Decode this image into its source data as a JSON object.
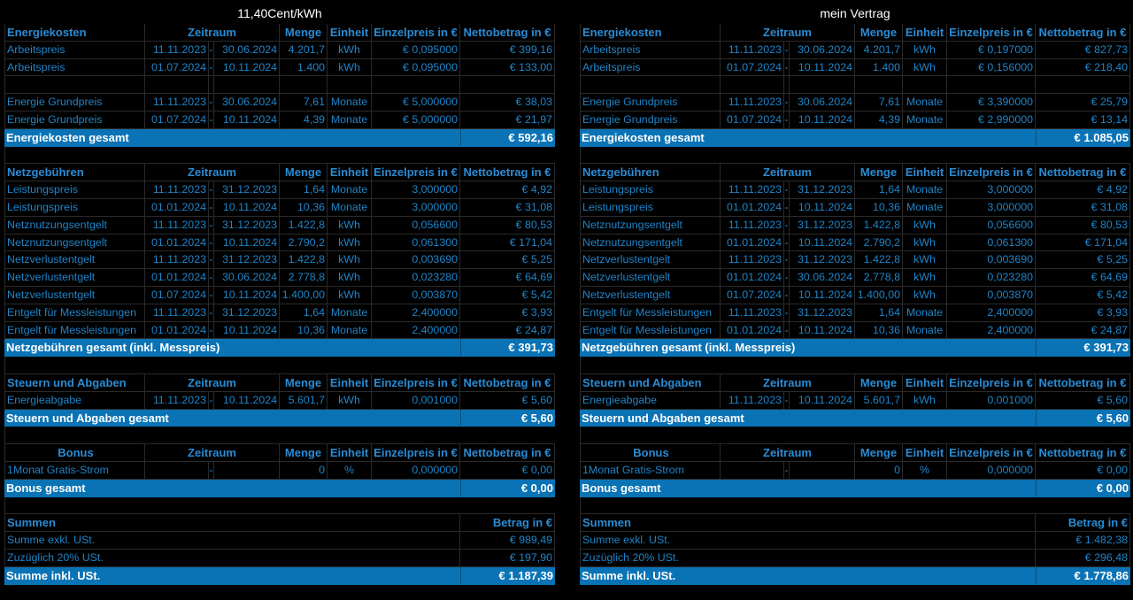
{
  "panels": [
    {
      "title": "11,40Cent/kWh",
      "energie": {
        "header": {
          "name": "Energiekosten",
          "zeitraum": "Zeitraum",
          "menge": "Menge",
          "einheit": "Einheit",
          "preis": "Einzelpreis in €",
          "netto": "Nettobetrag in €"
        },
        "rows": [
          {
            "name": "Arbeitspreis",
            "von": "11.11.2023",
            "dash": "-",
            "bis": "30.06.2024",
            "menge": "4.201,7",
            "einheit": "kWh",
            "preis": "€ 0,095000",
            "netto": "€ 399,16"
          },
          {
            "name": "Arbeitspreis",
            "von": "01.07.2024",
            "dash": "-",
            "bis": "10.11.2024",
            "menge": "1.400",
            "einheit": "kWh",
            "preis": "€ 0,095000",
            "netto": "€ 133,00"
          },
          {
            "name": "",
            "von": "",
            "dash": "",
            "bis": "",
            "menge": "",
            "einheit": "",
            "preis": "",
            "netto": ""
          },
          {
            "name": "Energie Grundpreis",
            "von": "11.11.2023",
            "dash": "-",
            "bis": "30.06.2024",
            "menge": "7,61",
            "einheit": "Monate",
            "preis": "€ 5,000000",
            "netto": "€ 38,03"
          },
          {
            "name": "Energie Grundpreis",
            "von": "01.07.2024",
            "dash": "-",
            "bis": "10.11.2024",
            "menge": "4,39",
            "einheit": "Monate",
            "preis": "€ 5,000000",
            "netto": "€ 21,97"
          }
        ],
        "total": {
          "label": "Energiekosten gesamt",
          "value": "€ 592,16"
        }
      },
      "netz": {
        "header": {
          "name": "Netzgebühren",
          "zeitraum": "Zeitraum",
          "menge": "Menge",
          "einheit": "Einheit",
          "preis": "Einzelpreis in €",
          "netto": "Nettobetrag in €"
        },
        "rows": [
          {
            "name": "Leistungspreis",
            "von": "11.11.2023",
            "dash": "-",
            "bis": "31.12.2023",
            "menge": "1,64",
            "einheit": "Monate",
            "preis": "3,000000",
            "netto": "€ 4,92"
          },
          {
            "name": "Leistungspreis",
            "von": "01.01.2024",
            "dash": "-",
            "bis": "10.11.2024",
            "menge": "10,36",
            "einheit": "Monate",
            "preis": "3,000000",
            "netto": "€ 31,08"
          },
          {
            "name": "Netznutzungsentgelt",
            "von": "11.11.2023",
            "dash": "-",
            "bis": "31.12.2023",
            "menge": "1.422,8",
            "einheit": "kWh",
            "preis": "0,056600",
            "netto": "€ 80,53"
          },
          {
            "name": "Netznutzungsentgelt",
            "von": "01.01.2024",
            "dash": "-",
            "bis": "10.11.2024",
            "menge": "2.790,2",
            "einheit": "kWh",
            "preis": "0,061300",
            "netto": "€ 171,04"
          },
          {
            "name": "Netzverlustentgelt",
            "von": "11.11.2023",
            "dash": "-",
            "bis": "31.12.2023",
            "menge": "1.422,8",
            "einheit": "kWh",
            "preis": "0,003690",
            "netto": "€ 5,25"
          },
          {
            "name": "Netzverlustentgelt",
            "von": "01.01.2024",
            "dash": "-",
            "bis": "30.06.2024",
            "menge": "2.778,8",
            "einheit": "kWh",
            "preis": "0,023280",
            "netto": "€ 64,69"
          },
          {
            "name": "Netzverlustentgelt",
            "von": "01.07.2024",
            "dash": "-",
            "bis": "10.11.2024",
            "menge": "1.400,00",
            "einheit": "kWh",
            "preis": "0,003870",
            "netto": "€ 5,42"
          },
          {
            "name": "Entgelt für Messleistungen",
            "von": "11.11.2023",
            "dash": "-",
            "bis": "31.12.2023",
            "menge": "1,64",
            "einheit": "Monate",
            "preis": "2,400000",
            "netto": "€ 3,93"
          },
          {
            "name": "Entgelt für Messleistungen",
            "von": "01.01.2024",
            "dash": "-",
            "bis": "10.11.2024",
            "menge": "10,36",
            "einheit": "Monate",
            "preis": "2,400000",
            "netto": "€ 24,87"
          }
        ],
        "total": {
          "label": "Netzgebühren gesamt (inkl. Messpreis)",
          "value": "€ 391,73"
        }
      },
      "steuern": {
        "header": {
          "name": "Steuern und Abgaben",
          "zeitraum": "Zeitraum",
          "menge": "Menge",
          "einheit": "Einheit",
          "preis": "Einzelpreis in €",
          "netto": "Nettobetrag in €"
        },
        "rows": [
          {
            "name": "Energieabgabe",
            "von": "11.11.2023",
            "dash": "-",
            "bis": "10.11.2024",
            "menge": "5.601,7",
            "einheit": "kWh",
            "preis": "0,001000",
            "netto": "€ 5,60"
          }
        ],
        "total": {
          "label": "Steuern und Abgaben gesamt",
          "value": "€ 5,60"
        }
      },
      "bonus": {
        "header": {
          "name": "Bonus",
          "zeitraum": "Zeitraum",
          "menge": "Menge",
          "einheit": "Einheit",
          "preis": "Einzelpreis in €",
          "netto": "Nettobetrag in €"
        },
        "rows": [
          {
            "name": "1Monat Gratis-Strom",
            "von": "",
            "dash": "-",
            "bis": "",
            "menge": "0",
            "einheit": "%",
            "preis": "0,000000",
            "netto": "€ 0,00"
          }
        ],
        "total": {
          "label": "Bonus gesamt",
          "value": "€ 0,00"
        }
      },
      "summen": {
        "header": {
          "name": "Summen",
          "betrag": "Betrag in €"
        },
        "rows": [
          {
            "name": "Summe exkl. USt.",
            "value": "€ 989,49"
          },
          {
            "name": "Zuzüglich 20% USt.",
            "value": "€ 197,90"
          }
        ],
        "total": {
          "label": "Summe inkl. USt.",
          "value": "€ 1.187,39"
        }
      }
    },
    {
      "title": "mein Vertrag",
      "energie": {
        "header": {
          "name": "Energiekosten",
          "zeitraum": "Zeitraum",
          "menge": "Menge",
          "einheit": "Einheit",
          "preis": "Einzelpreis in €",
          "netto": "Nettobetrag in €"
        },
        "rows": [
          {
            "name": "Arbeitspreis",
            "von": "11.11.2023",
            "dash": "-",
            "bis": "30.06.2024",
            "menge": "4.201,7",
            "einheit": "kWh",
            "preis": "€ 0,197000",
            "netto": "€ 827,73"
          },
          {
            "name": "Arbeitspreis",
            "von": "01.07.2024",
            "dash": "-",
            "bis": "10.11.2024",
            "menge": "1.400",
            "einheit": "kWh",
            "preis": "€ 0,156000",
            "netto": "€ 218,40"
          },
          {
            "name": "",
            "von": "",
            "dash": "",
            "bis": "",
            "menge": "",
            "einheit": "",
            "preis": "",
            "netto": ""
          },
          {
            "name": "Energie Grundpreis",
            "von": "11.11.2023",
            "dash": "-",
            "bis": "30.06.2024",
            "menge": "7,61",
            "einheit": "Monate",
            "preis": "€ 3,390000",
            "netto": "€ 25,79"
          },
          {
            "name": "Energie Grundpreis",
            "von": "01.07.2024",
            "dash": "-",
            "bis": "10.11.2024",
            "menge": "4,39",
            "einheit": "Monate",
            "preis": "€ 2,990000",
            "netto": "€ 13,14"
          }
        ],
        "total": {
          "label": "Energiekosten gesamt",
          "value": "€ 1.085,05"
        }
      },
      "netz": {
        "header": {
          "name": "Netzgebühren",
          "zeitraum": "Zeitraum",
          "menge": "Menge",
          "einheit": "Einheit",
          "preis": "Einzelpreis in €",
          "netto": "Nettobetrag in €"
        },
        "rows": [
          {
            "name": "Leistungspreis",
            "von": "11.11.2023",
            "dash": "-",
            "bis": "31.12.2023",
            "menge": "1,64",
            "einheit": "Monate",
            "preis": "3,000000",
            "netto": "€ 4,92"
          },
          {
            "name": "Leistungspreis",
            "von": "01.01.2024",
            "dash": "-",
            "bis": "10.11.2024",
            "menge": "10,36",
            "einheit": "Monate",
            "preis": "3,000000",
            "netto": "€ 31,08"
          },
          {
            "name": "Netznutzungsentgelt",
            "von": "11.11.2023",
            "dash": "-",
            "bis": "31.12.2023",
            "menge": "1.422,8",
            "einheit": "kWh",
            "preis": "0,056600",
            "netto": "€ 80,53"
          },
          {
            "name": "Netznutzungsentgelt",
            "von": "01.01.2024",
            "dash": "-",
            "bis": "10.11.2024",
            "menge": "2.790,2",
            "einheit": "kWh",
            "preis": "0,061300",
            "netto": "€ 171,04"
          },
          {
            "name": "Netzverlustentgelt",
            "von": "11.11.2023",
            "dash": "-",
            "bis": "31.12.2023",
            "menge": "1.422,8",
            "einheit": "kWh",
            "preis": "0,003690",
            "netto": "€ 5,25"
          },
          {
            "name": "Netzverlustentgelt",
            "von": "01.01.2024",
            "dash": "-",
            "bis": "30.06.2024",
            "menge": "2.778,8",
            "einheit": "kWh",
            "preis": "0,023280",
            "netto": "€ 64,69"
          },
          {
            "name": "Netzverlustentgelt",
            "von": "01.07.2024",
            "dash": "-",
            "bis": "10.11.2024",
            "menge": "1.400,00",
            "einheit": "kWh",
            "preis": "0,003870",
            "netto": "€ 5,42"
          },
          {
            "name": "Entgelt für Messleistungen",
            "von": "11.11.2023",
            "dash": "-",
            "bis": "31.12.2023",
            "menge": "1,64",
            "einheit": "Monate",
            "preis": "2,400000",
            "netto": "€ 3,93"
          },
          {
            "name": "Entgelt für Messleistungen",
            "von": "01.01.2024",
            "dash": "-",
            "bis": "10.11.2024",
            "menge": "10,36",
            "einheit": "Monate",
            "preis": "2,400000",
            "netto": "€ 24,87"
          }
        ],
        "total": {
          "label": "Netzgebühren gesamt (inkl. Messpreis)",
          "value": "€ 391,73"
        }
      },
      "steuern": {
        "header": {
          "name": "Steuern und Abgaben",
          "zeitraum": "Zeitraum",
          "menge": "Menge",
          "einheit": "Einheit",
          "preis": "Einzelpreis in €",
          "netto": "Nettobetrag in €"
        },
        "rows": [
          {
            "name": "Energieabgabe",
            "von": "11.11.2023",
            "dash": "-",
            "bis": "10.11.2024",
            "menge": "5.601,7",
            "einheit": "kWh",
            "preis": "0,001000",
            "netto": "€ 5,60"
          }
        ],
        "total": {
          "label": "Steuern und Abgaben gesamt",
          "value": "€ 5,60"
        }
      },
      "bonus": {
        "header": {
          "name": "Bonus",
          "zeitraum": "Zeitraum",
          "menge": "Menge",
          "einheit": "Einheit",
          "preis": "Einzelpreis in €",
          "netto": "Nettobetrag in €"
        },
        "rows": [
          {
            "name": "1Monat Gratis-Strom",
            "von": "",
            "dash": "-",
            "bis": "",
            "menge": "0",
            "einheit": "%",
            "preis": "0,000000",
            "netto": "€ 0,00"
          }
        ],
        "total": {
          "label": "Bonus gesamt",
          "value": "€ 0,00"
        }
      },
      "summen": {
        "header": {
          "name": "Summen",
          "betrag": "Betrag in €"
        },
        "rows": [
          {
            "name": "Summe exkl. USt.",
            "value": "€ 1.482,38"
          },
          {
            "name": "Zuzüglich 20% USt.",
            "value": "€ 296,48"
          }
        ],
        "total": {
          "label": "Summe inkl. USt.",
          "value": "€ 1.778,86"
        }
      }
    }
  ]
}
